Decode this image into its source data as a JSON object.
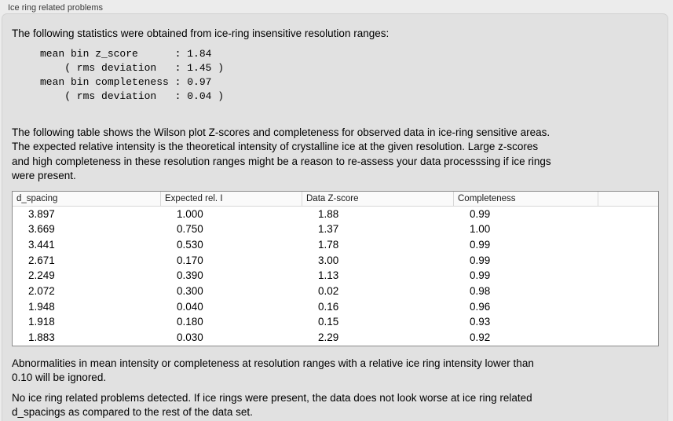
{
  "section": {
    "title": "Ice ring related problems"
  },
  "intro": "The following statistics were obtained from ice-ring insensitive resolution ranges:",
  "stats_block": "mean bin z_score      : 1.84\n    ( rms deviation   : 1.45 )\nmean bin completeness : 0.97\n    ( rms deviation   : 0.04 )",
  "stats": {
    "mean_bin_z_score": 1.84,
    "mean_bin_z_score_rms_deviation": 1.45,
    "mean_bin_completeness": 0.97,
    "mean_bin_completeness_rms_deviation": 0.04
  },
  "table_intro": "The following table shows the Wilson plot Z-scores and completeness for observed data in ice-ring sensitive areas.\nThe expected relative intensity is the theoretical intensity of crystalline ice at the given resolution. Large z-scores\nand high completeness in these resolution ranges might be a reason to re-assess your data processsing if ice rings\nwere present.",
  "table": {
    "columns": [
      "d_spacing",
      "Expected rel. I",
      "Data Z-score",
      "Completeness",
      ""
    ],
    "rows": [
      [
        "3.897",
        "1.000",
        "1.88",
        "0.99"
      ],
      [
        "3.669",
        "0.750",
        "1.37",
        "1.00"
      ],
      [
        "3.441",
        "0.530",
        "1.78",
        "0.99"
      ],
      [
        "2.671",
        "0.170",
        "3.00",
        "0.99"
      ],
      [
        "2.249",
        "0.390",
        "1.13",
        "0.99"
      ],
      [
        "2.072",
        "0.300",
        "0.02",
        "0.98"
      ],
      [
        "1.948",
        "0.040",
        "0.16",
        "0.96"
      ],
      [
        "1.918",
        "0.180",
        "0.15",
        "0.93"
      ],
      [
        "1.883",
        "0.030",
        "2.29",
        "0.92"
      ]
    ]
  },
  "notes": {
    "ignore_note": "Abnormalities in mean intensity or completeness at resolution ranges with a relative ice ring intensity lower than\n0.10 will be ignored.",
    "conclusion": "No ice ring related problems detected. If ice rings were present, the data does not look worse at ice ring related\nd_spacings as compared to the rest of the data set."
  },
  "colors": {
    "page_bg": "#ececec",
    "panel_bg": "#e1e1e1",
    "panel_border": "#d2d2d2",
    "table_border": "#8b8b8b",
    "table_header_bg": "#fafafa",
    "table_header_divider": "#d8d8d8",
    "table_body_bg": "#ffffff",
    "text": "#000000",
    "section_title_text": "#3a3a3a"
  }
}
